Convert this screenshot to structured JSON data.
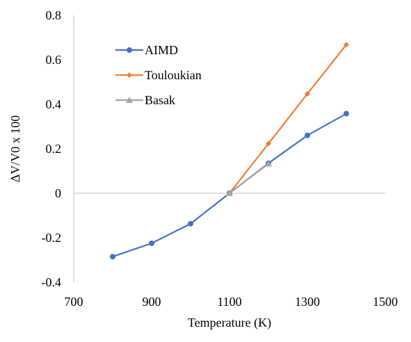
{
  "chart_data": {
    "type": "line",
    "title": "",
    "xlabel": "Temperature (K)",
    "ylabel": "ΔV/V0 x 100",
    "xlim": [
      700,
      1500
    ],
    "ylim": [
      -0.4,
      0.8
    ],
    "x_ticks": [
      700,
      900,
      1100,
      1300,
      1500
    ],
    "y_ticks": [
      -0.4,
      -0.2,
      0,
      0.2,
      0.4,
      0.6,
      0.8
    ],
    "x_tick_labels": [
      "700",
      "900",
      "1100",
      "1300",
      "1500"
    ],
    "y_tick_labels": [
      "-0.4",
      "-0.2",
      "0",
      "0.2",
      "0.4",
      "0.6",
      "0.8"
    ],
    "grid": false,
    "legend_position": "top-left",
    "series": [
      {
        "name": "AIMD",
        "color": "#4472c4",
        "marker": "circle",
        "x": [
          800,
          900,
          1000,
          1100,
          1200,
          1300,
          1400
        ],
        "y": [
          -0.285,
          -0.225,
          -0.137,
          0.0,
          0.135,
          0.26,
          0.358
        ]
      },
      {
        "name": "Touloukian",
        "color": "#ed7d31",
        "marker": "diamond",
        "x": [
          1100,
          1200,
          1300,
          1400
        ],
        "y": [
          0.0,
          0.223,
          0.447,
          0.668
        ]
      },
      {
        "name": "Basak",
        "color": "#a5a5a5",
        "marker": "triangle",
        "x": [
          1100,
          1200
        ],
        "y": [
          0.0,
          0.133
        ]
      }
    ]
  }
}
